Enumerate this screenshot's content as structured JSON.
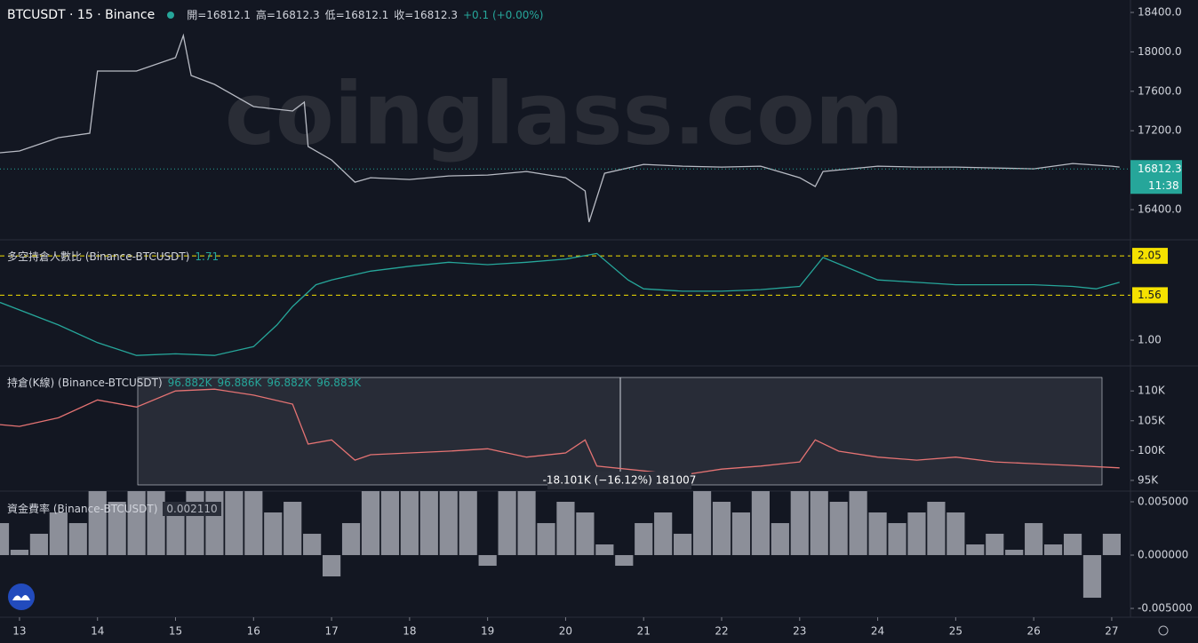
{
  "chart_data": [
    {
      "type": "line",
      "title": "BTCUSDT · 15 · Binance",
      "ohlc": [
        "開=16812.1",
        "高=16812.3",
        "低=16812.1",
        "收=16812.3"
      ],
      "change": "+0.1 (+0.00%)",
      "watermark": "coinglass.com",
      "x": [
        12.75,
        13,
        13.5,
        13.9,
        14,
        14.5,
        15,
        15.1,
        15.2,
        15.5,
        16,
        16.5,
        16.65,
        16.7,
        17,
        17.3,
        17.5,
        18,
        18.5,
        19,
        19.5,
        20,
        20.25,
        20.3,
        20.5,
        21,
        21.5,
        22,
        22.5,
        23,
        23.2,
        23.3,
        24,
        24.5,
        25,
        25.5,
        26,
        26.5,
        27,
        27.1
      ],
      "values": [
        16977,
        16995,
        17130,
        17175,
        17805,
        17805,
        17941,
        18166,
        17760,
        17670,
        17445,
        17400,
        17490,
        17040,
        16904,
        16679,
        16724,
        16706,
        16742,
        16751,
        16787,
        16724,
        16589,
        16274,
        16769,
        16859,
        16841,
        16832,
        16841,
        16724,
        16634,
        16787,
        16841,
        16832,
        16832,
        16823,
        16814,
        16868,
        16841,
        16832
      ],
      "color": "#b8bbc4",
      "xlim": [
        12.75,
        27.24
      ],
      "ylim": [
        16094,
        18526
      ],
      "yticks": [
        {
          "value": 16400,
          "label": "16400.0"
        },
        {
          "value": 17200,
          "label": "17200.0"
        },
        {
          "value": 17600,
          "label": "17600.0"
        },
        {
          "value": 18000,
          "label": "18000.0"
        },
        {
          "value": 18400,
          "label": "18400.0"
        }
      ],
      "last_value": 16812.3,
      "countdown": "11:38"
    },
    {
      "type": "line",
      "title": "多空持倉人數比 (Binance-BTCUSDT)",
      "current_value": 1.71,
      "x": [
        12.75,
        13.5,
        14,
        14.5,
        15,
        15.5,
        16,
        16.3,
        16.5,
        16.8,
        17,
        17.5,
        18,
        18.5,
        19,
        19.5,
        20,
        20.4,
        20.8,
        21,
        21.5,
        22,
        22.5,
        23,
        23.3,
        24,
        24.5,
        25,
        25.5,
        26,
        26.5,
        26.8,
        27.1
      ],
      "values": [
        1.47,
        1.19,
        0.97,
        0.81,
        0.83,
        0.81,
        0.92,
        1.19,
        1.42,
        1.69,
        1.75,
        1.86,
        1.92,
        1.97,
        1.94,
        1.97,
        2.01,
        2.08,
        1.75,
        1.64,
        1.61,
        1.61,
        1.63,
        1.67,
        2.03,
        1.75,
        1.72,
        1.69,
        1.69,
        1.69,
        1.67,
        1.64,
        1.72
      ],
      "color": "#26a69a",
      "xlim": [
        12.75,
        27.24
      ],
      "ylim": [
        0.68,
        2.25
      ],
      "yticks": [
        {
          "value": 1,
          "label": "1.00"
        }
      ],
      "ref_lines": [
        2.05,
        1.56
      ]
    },
    {
      "type": "line",
      "title": "持倉(K線) (Binance-BTCUSDT)",
      "current_labels": [
        "96.882K",
        "96.886K",
        "96.882K",
        "96.883K"
      ],
      "measure_label": "-18.101K (−16.12%)  181007",
      "x": [
        12.75,
        13,
        13.5,
        14,
        14.5,
        15,
        15.5,
        16,
        16.5,
        16.7,
        17,
        17.3,
        17.5,
        18,
        18.5,
        19,
        19.5,
        20,
        20.25,
        20.4,
        21,
        21.5,
        22,
        22.5,
        23,
        23.2,
        23.5,
        24,
        24.5,
        25,
        25.5,
        26,
        26.5,
        27.1
      ],
      "values": [
        104350,
        104050,
        105500,
        108500,
        107300,
        110000,
        110300,
        109300,
        107800,
        101100,
        101800,
        98400,
        99300,
        99600,
        99900,
        100300,
        98900,
        99600,
        101800,
        97400,
        96600,
        95900,
        96900,
        97400,
        98100,
        101800,
        99900,
        98900,
        98400,
        98900,
        98100,
        97800,
        97500,
        97100
      ],
      "color": "#e57373",
      "xlim": [
        12.75,
        27.24
      ],
      "ylim": [
        93200,
        114200
      ],
      "yticks": [
        {
          "value": 95000,
          "label": "95K"
        },
        {
          "value": 100000,
          "label": "100K"
        },
        {
          "value": 105000,
          "label": "105K"
        },
        {
          "value": 110000,
          "label": "110K"
        }
      ]
    },
    {
      "type": "bar",
      "title": "資金費率 (Binance-BTCUSDT)",
      "current_label": "0.002110",
      "x": [
        12.75,
        13,
        13.25,
        13.5,
        13.75,
        14,
        14.25,
        14.5,
        14.75,
        15,
        15.25,
        15.5,
        15.75,
        16,
        16.25,
        16.5,
        16.75,
        17,
        17.25,
        17.5,
        17.75,
        18,
        18.25,
        18.5,
        18.75,
        19,
        19.25,
        19.5,
        19.75,
        20,
        20.25,
        20.5,
        20.75,
        21,
        21.25,
        21.5,
        21.75,
        22,
        22.25,
        22.5,
        22.75,
        23,
        23.25,
        23.5,
        23.75,
        24,
        24.25,
        24.5,
        24.75,
        25,
        25.25,
        25.5,
        25.75,
        26,
        26.25,
        26.5,
        26.75,
        27
      ],
      "values": [
        0.003,
        0.0005,
        0.002,
        0.004,
        0.003,
        0.006,
        0.005,
        0.006,
        0.006,
        0.005,
        0.006,
        0.006,
        0.006,
        0.006,
        0.004,
        0.005,
        0.002,
        -0.002,
        0.003,
        0.006,
        0.006,
        0.006,
        0.006,
        0.006,
        0.006,
        -0.001,
        0.006,
        0.006,
        0.003,
        0.005,
        0.004,
        0.001,
        -0.001,
        0.003,
        0.004,
        0.002,
        0.006,
        0.005,
        0.004,
        0.006,
        0.003,
        0.006,
        0.006,
        0.005,
        0.006,
        0.004,
        0.003,
        0.004,
        0.005,
        0.004,
        0.001,
        0.002,
        0.0005,
        0.003,
        0.001,
        0.002,
        -0.004,
        0.002
      ],
      "color": "#8c8f99",
      "xlim": [
        12.75,
        27.24
      ],
      "ylim": [
        -0.00583,
        0.006
      ],
      "yticks": [
        {
          "value": -0.005,
          "label": "-0.005000"
        },
        {
          "value": 0,
          "label": "0.000000"
        },
        {
          "value": 0.005,
          "label": "0.005000"
        }
      ],
      "xticks": [
        13,
        14,
        15,
        16,
        17,
        18,
        19,
        20,
        21,
        22,
        23,
        24,
        25,
        26,
        27
      ]
    }
  ]
}
